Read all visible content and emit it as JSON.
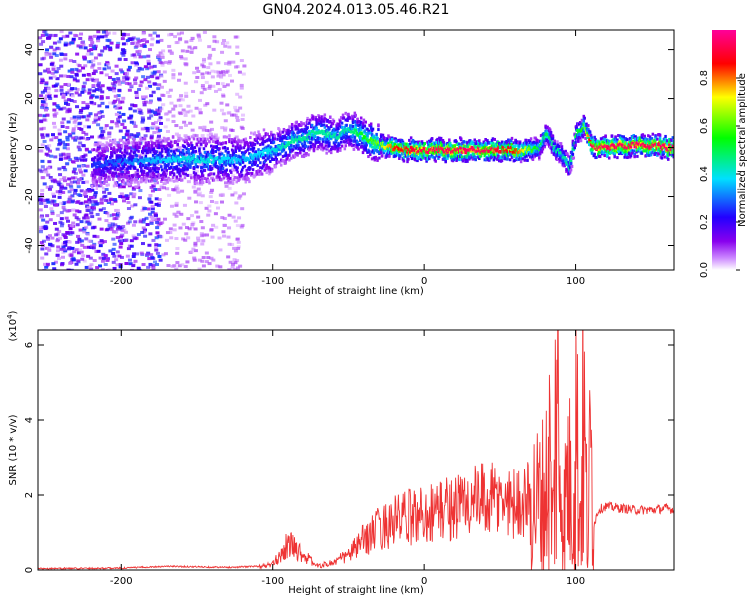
{
  "title": "GN04.2024.013.05.46.R21",
  "chart_data": [
    {
      "type": "heatmap",
      "title": "GN04.2024.013.05.46.R21",
      "xlabel": "Height of straight line (km)",
      "ylabel": "Frequency (Hz)",
      "xlim": [
        -255,
        165
      ],
      "ylim": [
        -50,
        48
      ],
      "x_ticks": [
        -200,
        -100,
        0,
        100
      ],
      "y_ticks": [
        -40,
        -20,
        0,
        20,
        40
      ],
      "grid": false,
      "colorbar": {
        "label": "Normalized spectral amplitude",
        "range": [
          0,
          1
        ],
        "ticks": [
          "0.0",
          "0.2",
          "0.4",
          "0.6",
          "0.8"
        ],
        "colormap": [
          "#8800ee",
          "#2200ff",
          "#00e0ff",
          "#00ff00",
          "#ffff00",
          "#ff0000",
          "#ff0099"
        ]
      },
      "ridge_x": [
        -220,
        -200,
        -180,
        -160,
        -140,
        -120,
        -100,
        -90,
        -80,
        -70,
        -60,
        -50,
        -40,
        -30,
        -20,
        -10,
        0,
        20,
        40,
        60,
        70,
        75,
        80,
        85,
        90,
        95,
        100,
        105,
        110,
        120,
        140,
        160
      ],
      "ridge_y": [
        -7,
        -6,
        -5,
        -5,
        -5,
        -5,
        -1,
        2,
        4,
        7,
        4,
        8,
        4,
        1,
        0,
        -1,
        -1,
        -1,
        -1,
        -1,
        -1,
        0,
        6,
        0,
        -3,
        -8,
        6,
        9,
        0,
        0,
        1,
        0
      ],
      "ridge_amplitude": [
        0.25,
        0.3,
        0.35,
        0.4,
        0.4,
        0.35,
        0.4,
        0.45,
        0.45,
        0.45,
        0.45,
        0.45,
        0.55,
        0.65,
        0.85,
        0.9,
        0.95,
        0.95,
        0.95,
        0.85,
        0.6,
        0.5,
        0.5,
        0.45,
        0.45,
        0.45,
        0.5,
        0.6,
        0.95,
        0.95,
        0.95,
        0.95
      ]
    },
    {
      "type": "line",
      "xlabel": "Height of straight line (km)",
      "ylabel": "SNR (10 * v/v)",
      "y_multiplier": "(x10",
      "y_multiplier_exp": "4",
      "y_multiplier_close": ")",
      "xlim": [
        -255,
        165
      ],
      "ylim": [
        0,
        6.4
      ],
      "x_ticks": [
        -200,
        -100,
        0,
        100
      ],
      "y_ticks": [
        0,
        2,
        4,
        6
      ],
      "grid": false,
      "line_color": "#ee3333",
      "x": [
        -255,
        -200,
        -170,
        -130,
        -110,
        -100,
        -95,
        -90,
        -85,
        -80,
        -75,
        -70,
        -60,
        -50,
        -40,
        -30,
        -20,
        -10,
        0,
        10,
        20,
        30,
        40,
        50,
        60,
        70,
        75,
        80,
        83,
        85,
        87,
        88,
        89,
        90,
        92,
        95,
        98,
        100,
        103,
        105,
        108,
        110,
        112,
        115,
        120,
        130,
        140,
        150,
        160,
        165
      ],
      "y": [
        0.02,
        0.03,
        0.08,
        0.05,
        0.08,
        0.15,
        0.4,
        0.7,
        0.6,
        0.4,
        0.25,
        0.1,
        0.2,
        0.4,
        0.8,
        1.1,
        1.3,
        1.4,
        1.5,
        1.6,
        1.7,
        1.8,
        1.85,
        1.85,
        1.8,
        1.9,
        1.8,
        2.0,
        2.9,
        0.9,
        4.2,
        6.3,
        1.5,
        3.0,
        1.2,
        2.6,
        1.5,
        4.3,
        1.2,
        4.4,
        0.8,
        3.2,
        1.2,
        1.6,
        1.7,
        1.65,
        1.6,
        1.6,
        1.65,
        1.6
      ]
    }
  ]
}
